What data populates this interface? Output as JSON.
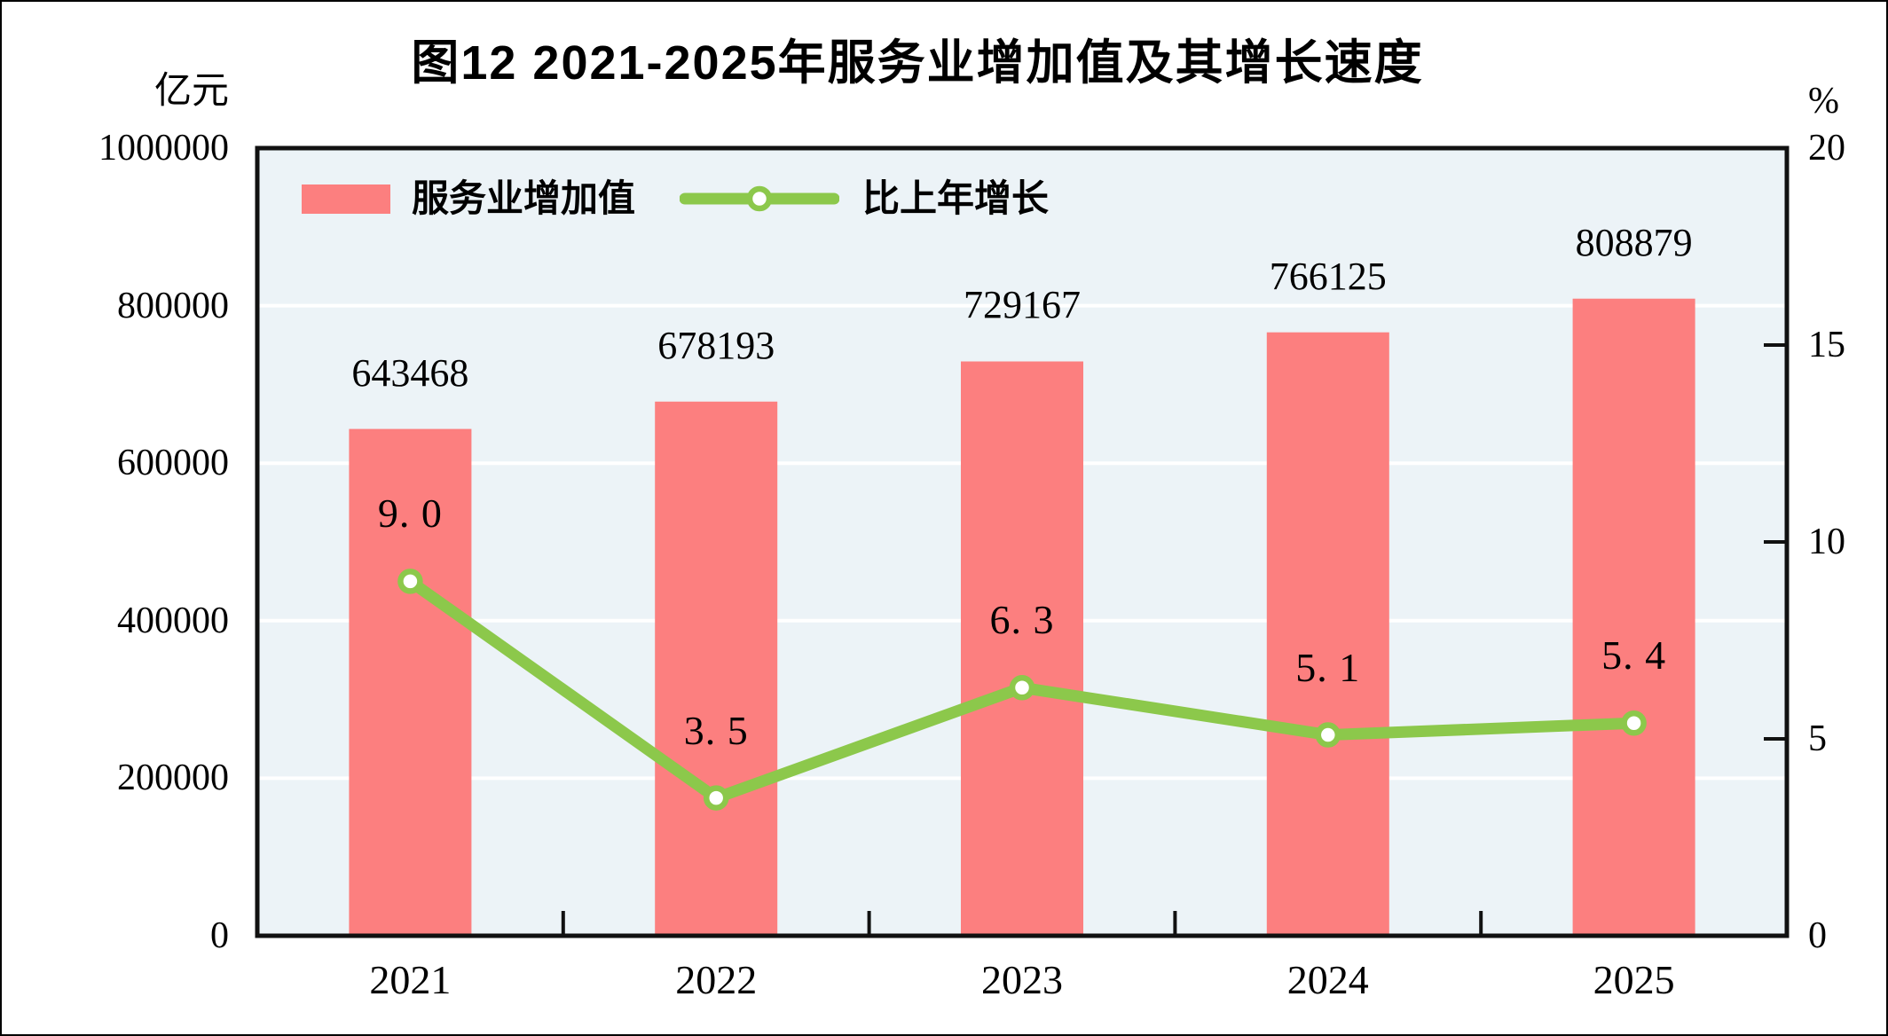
{
  "chart_data": {
    "type": "combo-bar-line",
    "title": "图12  2021-2025年服务业增加值及其增长速度",
    "categories": [
      "2021",
      "2022",
      "2023",
      "2024",
      "2025"
    ],
    "series": [
      {
        "name": "服务业增加值",
        "type": "bar",
        "axis": "left",
        "unit": "亿元",
        "color": "#fc7f7f",
        "values": [
          643468,
          678193,
          729167,
          766125,
          808879
        ],
        "value_labels": [
          "643468",
          "678193",
          "729167",
          "766125",
          "808879"
        ]
      },
      {
        "name": "比上年增长",
        "type": "line",
        "axis": "right",
        "unit": "%",
        "color": "#8cc84b",
        "marker": "circle-white-fill-green-ring",
        "values": [
          9.0,
          3.5,
          6.3,
          5.1,
          5.4
        ],
        "value_labels": [
          "9. 0",
          "3. 5",
          "6. 3",
          "5. 1",
          "5. 4"
        ]
      }
    ],
    "left_axis": {
      "unit": "亿元",
      "min": 0,
      "max": 1000000,
      "tick_values": [
        0,
        200000,
        400000,
        600000,
        800000,
        1000000
      ],
      "tick_labels": [
        "0",
        "200000",
        "400000",
        "600000",
        "800000",
        "1000000"
      ]
    },
    "right_axis": {
      "unit": "%",
      "min": 0,
      "max": 20,
      "tick_values": [
        0,
        5,
        10,
        15,
        20
      ],
      "tick_labels": [
        "0",
        "5",
        "10",
        "15",
        "20"
      ],
      "inner_tick_values": [
        5,
        10,
        15
      ]
    },
    "legend_position": "top-left-inside",
    "grid": "horizontal-white-lines",
    "plot_background": "#ecf3f7",
    "colors": {
      "bar": "#fc7f7f",
      "line": "#8cc84b",
      "grid": "#ffffff",
      "border": "#111111",
      "text": "#000000",
      "page_background": "#ffffff"
    }
  }
}
